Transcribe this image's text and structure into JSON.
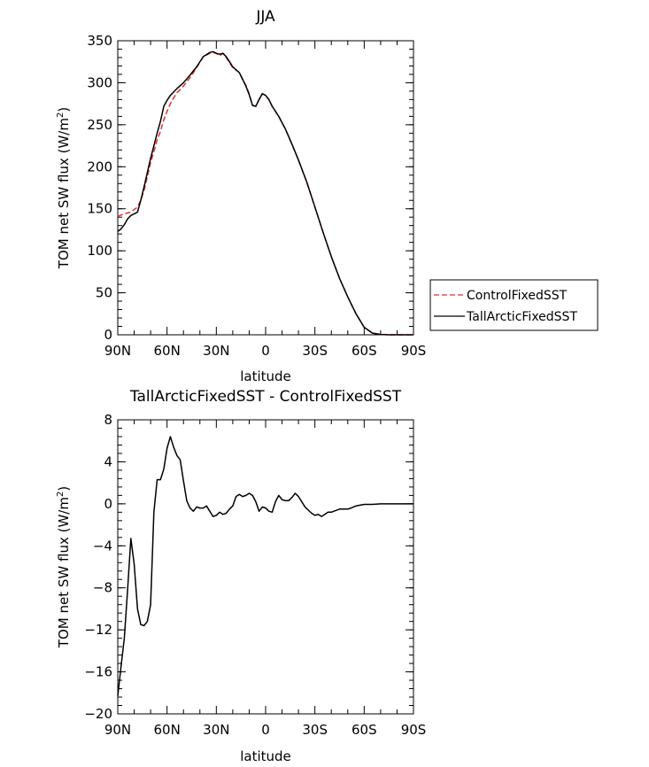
{
  "chart_data": [
    {
      "type": "line",
      "title": "JJA",
      "xlabel": "latitude",
      "ylabel": "TOM net SW flux (W/m²)",
      "ylabel_parts": [
        "TOM net SW flux (W/m",
        "2",
        ")"
      ],
      "xlim": [
        90,
        -90
      ],
      "ylim": [
        0,
        350
      ],
      "x_ticks": [
        90,
        60,
        30,
        0,
        -30,
        -60,
        -90
      ],
      "x_tick_labels": [
        "90N",
        "60N",
        "30N",
        "0",
        "30S",
        "60S",
        "90S"
      ],
      "y_ticks": [
        0,
        50,
        100,
        150,
        200,
        250,
        300,
        350
      ],
      "y_tick_labels": [
        "0",
        "50",
        "100",
        "150",
        "200",
        "250",
        "300",
        "350"
      ],
      "legend": {
        "placement": "right",
        "entries": [
          "ControlFixedSST",
          "TallArcticFixedSST"
        ]
      },
      "series": [
        {
          "name": "ControlFixedSST",
          "color": "#e03030",
          "dash": "dashed",
          "x": [
            90,
            86,
            82,
            78,
            76,
            74,
            72,
            70,
            68,
            66,
            64,
            62,
            60,
            58,
            56,
            54,
            50,
            46,
            42,
            38,
            34,
            32,
            30,
            28,
            26,
            24,
            22,
            20,
            16,
            12,
            10,
            8,
            6,
            4,
            2,
            0,
            -2,
            -4,
            -8,
            -12,
            -16,
            -20,
            -25,
            -30,
            -35,
            -40,
            -45,
            -50,
            -55,
            -60,
            -65,
            -70,
            -75,
            -80,
            -85,
            -90
          ],
          "values": [
            141,
            144,
            146,
            152,
            160,
            172,
            188,
            205,
            218,
            232,
            242,
            256,
            266,
            275,
            282,
            288,
            296,
            306,
            318,
            331,
            335,
            336,
            335,
            332,
            335,
            330,
            324,
            318,
            312,
            297,
            287,
            273,
            272,
            280,
            287,
            285,
            280,
            272,
            260,
            245,
            227,
            208,
            182,
            152,
            122,
            93,
            67,
            45,
            25,
            9,
            2,
            0.4,
            0,
            0,
            0,
            0
          ]
        },
        {
          "name": "TallArcticFixedSST",
          "color": "#000000",
          "dash": "solid",
          "x": [
            90,
            88,
            86,
            84,
            82,
            80,
            78,
            76,
            74,
            72,
            70,
            68,
            66,
            64,
            62,
            60,
            58,
            56,
            54,
            50,
            46,
            42,
            38,
            34,
            32,
            30,
            28,
            26,
            24,
            22,
            20,
            16,
            12,
            10,
            8,
            6,
            4,
            2,
            0,
            -2,
            -4,
            -8,
            -12,
            -16,
            -20,
            -25,
            -30,
            -35,
            -40,
            -45,
            -50,
            -55,
            -60,
            -65,
            -70,
            -75,
            -80,
            -85,
            -90
          ],
          "values": [
            123,
            126,
            131,
            138,
            142,
            144,
            146,
            160,
            176,
            193,
            210,
            225,
            240,
            254,
            272,
            279,
            285,
            289,
            293,
            300,
            309,
            319,
            331,
            336,
            337,
            335,
            334,
            335,
            331,
            325,
            319,
            312,
            296,
            286,
            273,
            272,
            280,
            287,
            285,
            280,
            272,
            260,
            245,
            227,
            208,
            182,
            152,
            122,
            93,
            67,
            45,
            25,
            9,
            2,
            0.4,
            0,
            0,
            0,
            0
          ]
        }
      ]
    },
    {
      "type": "line",
      "title": "TallArcticFixedSST - ControlFixedSST",
      "xlabel": "latitude",
      "ylabel": "TOM net SW flux (W/m²)",
      "ylabel_parts": [
        "TOM net SW flux (W/m",
        "2",
        ")"
      ],
      "xlim": [
        90,
        -90
      ],
      "ylim": [
        -20,
        8
      ],
      "x_ticks": [
        90,
        60,
        30,
        0,
        -30,
        -60,
        -90
      ],
      "x_tick_labels": [
        "90N",
        "60N",
        "30N",
        "0",
        "30S",
        "60S",
        "90S"
      ],
      "y_ticks": [
        -20,
        -16,
        -12,
        -8,
        -4,
        0,
        4,
        8
      ],
      "y_tick_labels": [
        "−20",
        "−16",
        "−12",
        "−8",
        "−4",
        "0",
        "4",
        "8"
      ],
      "series": [
        {
          "color": "#000000",
          "dash": "solid",
          "x": [
            90,
            88,
            86,
            84,
            82,
            80,
            78,
            76,
            74,
            72,
            70,
            68,
            66,
            64,
            62,
            60,
            58,
            56,
            54,
            52,
            50,
            48,
            46,
            44,
            42,
            40,
            38,
            36,
            34,
            32,
            30,
            28,
            26,
            24,
            22,
            20,
            18,
            16,
            14,
            12,
            10,
            8,
            6,
            4,
            2,
            0,
            -2,
            -4,
            -6,
            -8,
            -10,
            -12,
            -14,
            -16,
            -18,
            -20,
            -22,
            -24,
            -26,
            -28,
            -30,
            -32,
            -34,
            -36,
            -38,
            -40,
            -45,
            -50,
            -52,
            -55,
            -60,
            -65,
            -70,
            -80,
            -90
          ],
          "values": [
            -18.3,
            -15.5,
            -12.8,
            -8.2,
            -3.3,
            -5.8,
            -10,
            -11.5,
            -11.6,
            -11.2,
            -9.6,
            -0.8,
            2.3,
            2.3,
            3.3,
            5.3,
            6.4,
            5.4,
            4.6,
            4.2,
            2.2,
            0.3,
            -0.4,
            -0.7,
            -0.3,
            -0.4,
            -0.4,
            -0.2,
            -0.7,
            -1.2,
            -1.1,
            -0.8,
            -1.0,
            -0.9,
            -0.5,
            -0.2,
            0.7,
            0.9,
            0.7,
            0.8,
            1.0,
            0.8,
            0.2,
            -0.7,
            -0.3,
            -0.4,
            -0.7,
            -0.8,
            0.2,
            0.8,
            0.4,
            0.3,
            0.3,
            0.6,
            1.0,
            0.7,
            0.2,
            -0.3,
            -0.6,
            -0.9,
            -1.1,
            -1.0,
            -1.2,
            -1.0,
            -0.8,
            -0.8,
            -0.5,
            -0.5,
            -0.4,
            -0.2,
            -0.05,
            -0.05,
            0,
            0,
            0
          ]
        }
      ]
    }
  ]
}
